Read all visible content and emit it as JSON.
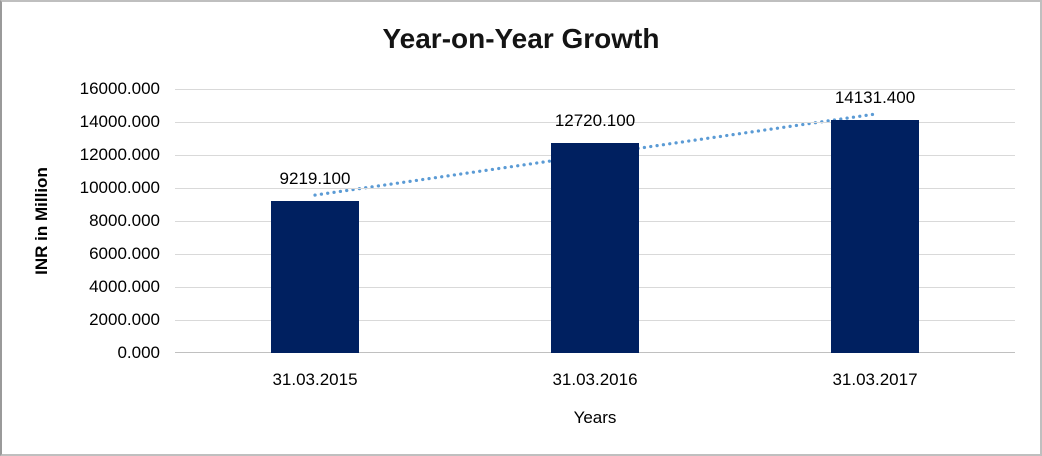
{
  "chart_data": {
    "type": "bar",
    "title": "Year-on-Year Growth",
    "xlabel": "Years",
    "ylabel": "INR in Million",
    "categories": [
      "31.03.2015",
      "31.03.2016",
      "31.03.2017"
    ],
    "values": [
      9219.1,
      12720.1,
      14131.4
    ],
    "value_labels": [
      "9219.100",
      "12720.100",
      "14131.400"
    ],
    "ylim": [
      0,
      16000
    ],
    "ytick_step": 2000,
    "ytick_labels": [
      "0.000",
      "2000.000",
      "4000.000",
      "6000.000",
      "8000.000",
      "10000.000",
      "12000.000",
      "14000.000",
      "16000.000"
    ],
    "grid": true,
    "legend_position": "none",
    "bar_color": "#002060",
    "gridline_color": "#d9d9d9",
    "axis_line_color": "#c0c0c0",
    "trendline": {
      "type": "linear",
      "style": "dotted",
      "color": "#5B9BD5"
    }
  }
}
